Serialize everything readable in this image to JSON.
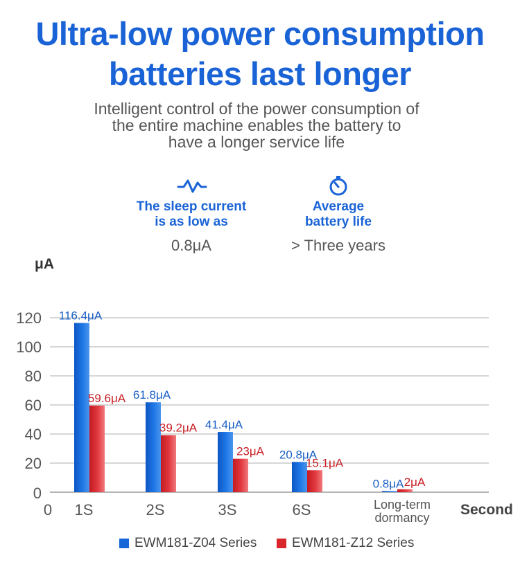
{
  "header": {
    "title_line1": "Ultra-low power consumption",
    "title_line2": "batteries last longer",
    "subtitle_line1": "Intelligent control of the power consumption of",
    "subtitle_line2": "the entire machine enables the battery to",
    "subtitle_line3": "have a longer service life"
  },
  "features": [
    {
      "icon": "pulse-wave-icon",
      "label_line1": "The sleep current",
      "label_line2": "is as low as",
      "value": "0.8μA"
    },
    {
      "icon": "stopwatch-icon",
      "label_line1": "Average",
      "label_line2": "battery life",
      "value": "> Three years"
    }
  ],
  "colors": {
    "accent": "#1a63d6",
    "series1": "#1668d8",
    "series2": "#d9262b"
  },
  "chart_data": {
    "type": "bar",
    "title": "",
    "ylabel": "μA",
    "xlabel": "Second",
    "ylim": [
      0,
      120
    ],
    "yticks": [
      0,
      20,
      40,
      60,
      80,
      100,
      120
    ],
    "origin_label": "0",
    "categories": [
      "1S",
      "2S",
      "3S",
      "6S",
      "Long-term dormancy"
    ],
    "series": [
      {
        "name": "EWM181-Z04 Series",
        "color": "#1668d8",
        "label_color": "#1a5fc4",
        "values": [
          116.4,
          61.8,
          41.4,
          20.8,
          0.8
        ],
        "labels": [
          "116.4μA",
          "61.8μA",
          "41.4μA",
          "20.8μA",
          "0.8μA"
        ]
      },
      {
        "name": "EWM181-Z12 Series",
        "color": "#d9262b",
        "label_color": "#c71f25",
        "values": [
          59.6,
          39.2,
          23,
          15.1,
          2
        ],
        "labels": [
          "59.6μA",
          "39.2μA",
          "23μA",
          "15.1μA",
          "2μA"
        ]
      }
    ],
    "grid": true,
    "legend_position": "bottom"
  }
}
